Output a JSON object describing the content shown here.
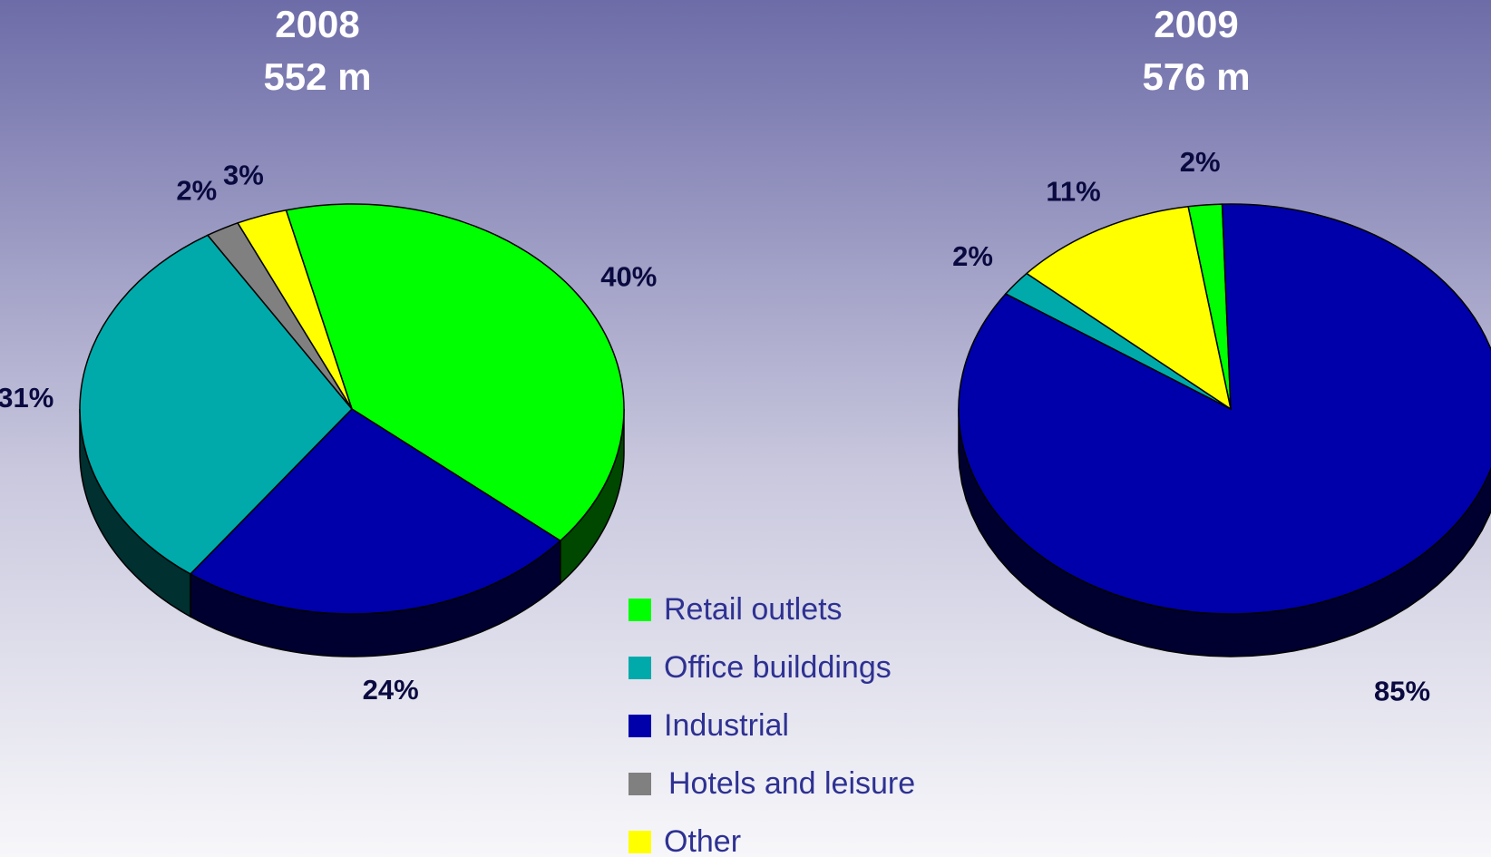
{
  "legend": {
    "labels": [
      "Retail outlets",
      "Office builddings",
      "Industrial",
      "Hotels and leisure",
      "Other"
    ],
    "colors": [
      "#00ff00",
      "#00aaaa",
      "#0000aa",
      "#808080",
      "#ffff00"
    ]
  },
  "chart_data": [
    {
      "type": "pie",
      "title": "2008",
      "subtitle": "552 m",
      "values": [
        40,
        31,
        24,
        2,
        3
      ],
      "value_labels": [
        "40%",
        "31%",
        "24%",
        "2%",
        "3%"
      ]
    },
    {
      "type": "pie",
      "title": "2009",
      "subtitle": "576 m",
      "values": [
        2,
        2,
        85,
        null,
        11
      ],
      "value_labels": [
        "2%",
        "2%",
        "85%",
        null,
        "11%"
      ]
    }
  ]
}
